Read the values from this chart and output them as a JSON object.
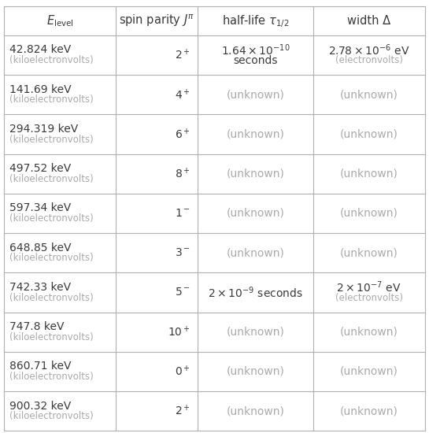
{
  "headers": [
    "$E_\\mathrm{level}$",
    "spin parity $J^\\pi$",
    "half-life $\\tau_{1/2}$",
    "width Δ"
  ],
  "col0": [
    "42.824 keV\n(kiloelectronvolts)",
    "141.69 keV\n(kiloelectronvolts)",
    "294.319 keV\n(kiloelectronvolts)",
    "497.52 keV\n(kiloelectronvolts)",
    "597.34 keV\n(kiloelectronvolts)",
    "648.85 keV\n(kiloelectronvolts)",
    "742.33 keV\n(kiloelectronvolts)",
    "747.8 keV\n(kiloelectronvolts)",
    "860.71 keV\n(kiloelectronvolts)",
    "900.32 keV\n(kiloelectronvolts)"
  ],
  "col1": [
    "2$^+$",
    "4$^+$",
    "6$^+$",
    "8$^+$",
    "1$^-$",
    "3$^-$",
    "5$^-$",
    "10$^+$",
    "0$^+$",
    "2$^+$"
  ],
  "col2": [
    "$1.64\\times10^{-10}$\nseconds",
    "(unknown)",
    "(unknown)",
    "(unknown)",
    "(unknown)",
    "(unknown)",
    "$2\\times10^{-9}$ seconds",
    "(unknown)",
    "(unknown)",
    "(unknown)"
  ],
  "col3": [
    "$2.78\\times10^{-6}$ eV\n(electronvolts)",
    "(unknown)",
    "(unknown)",
    "(unknown)",
    "(unknown)",
    "(unknown)",
    "$2\\times10^{-7}$ eV\n(electronvolts)",
    "(unknown)",
    "(unknown)",
    "(unknown)"
  ],
  "line_color": "#b0b0b0",
  "text_color": "#3a3a3a",
  "unknown_color": "#aaaaaa",
  "bg_color": "#ffffff",
  "header_fs": 10.5,
  "cell_fs": 10.0,
  "small_fs": 8.5
}
